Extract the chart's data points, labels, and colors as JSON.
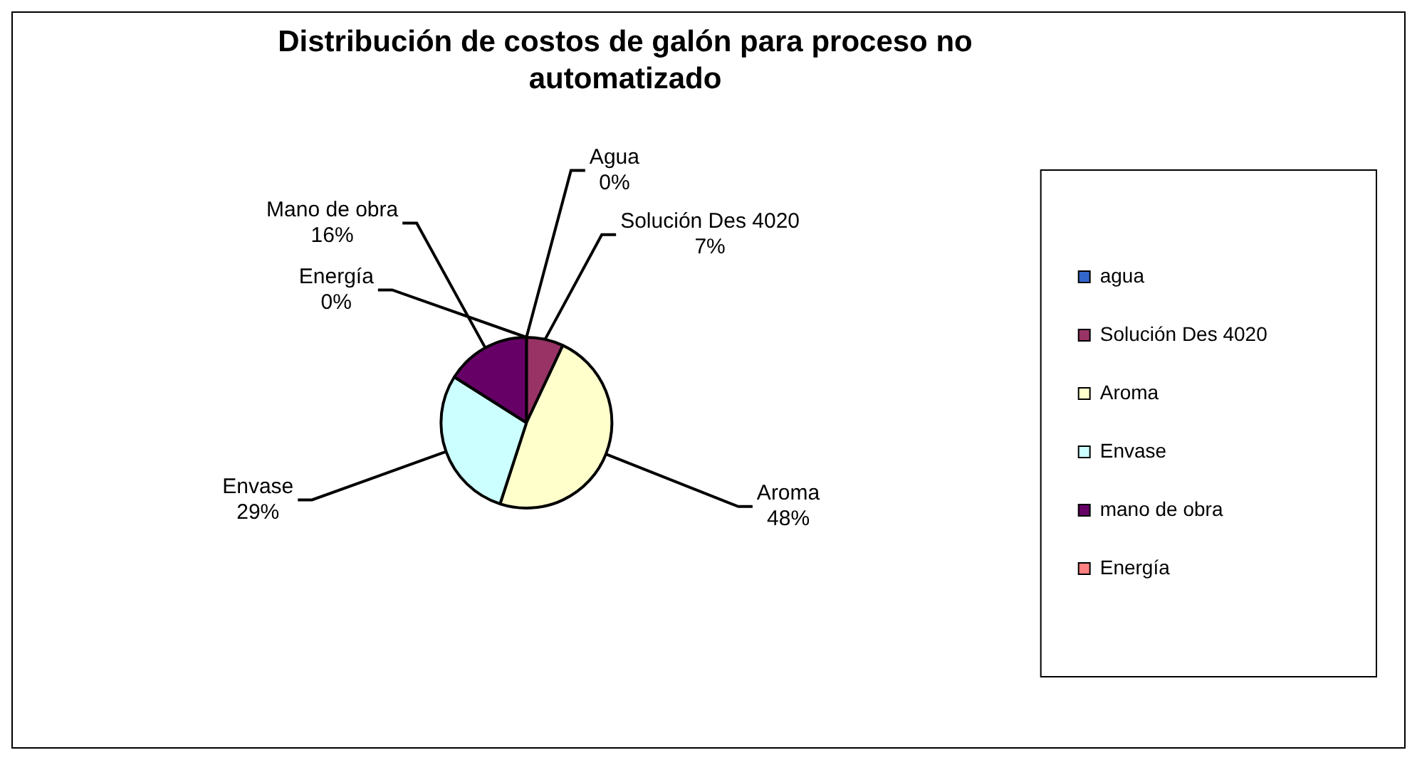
{
  "chart_data": {
    "type": "pie",
    "title": "Distribución de costos de galón para proceso no automatizado",
    "categories": [
      "agua",
      "Solución Des 4020",
      "Aroma",
      "Envase",
      "mano de obra",
      "Energía"
    ],
    "values": [
      0,
      7,
      48,
      29,
      16,
      0
    ],
    "colors": [
      "#3366cc",
      "#993366",
      "#ffffcc",
      "#ccffff",
      "#660066",
      "#ff8080"
    ],
    "value_labels": [
      "Agua\n0%",
      "Solución Des 4020\n7%",
      "Aroma\n48%",
      "Envase\n29%",
      "Mano de obra\n16%",
      "Energía\n0%"
    ],
    "legend": "right"
  }
}
